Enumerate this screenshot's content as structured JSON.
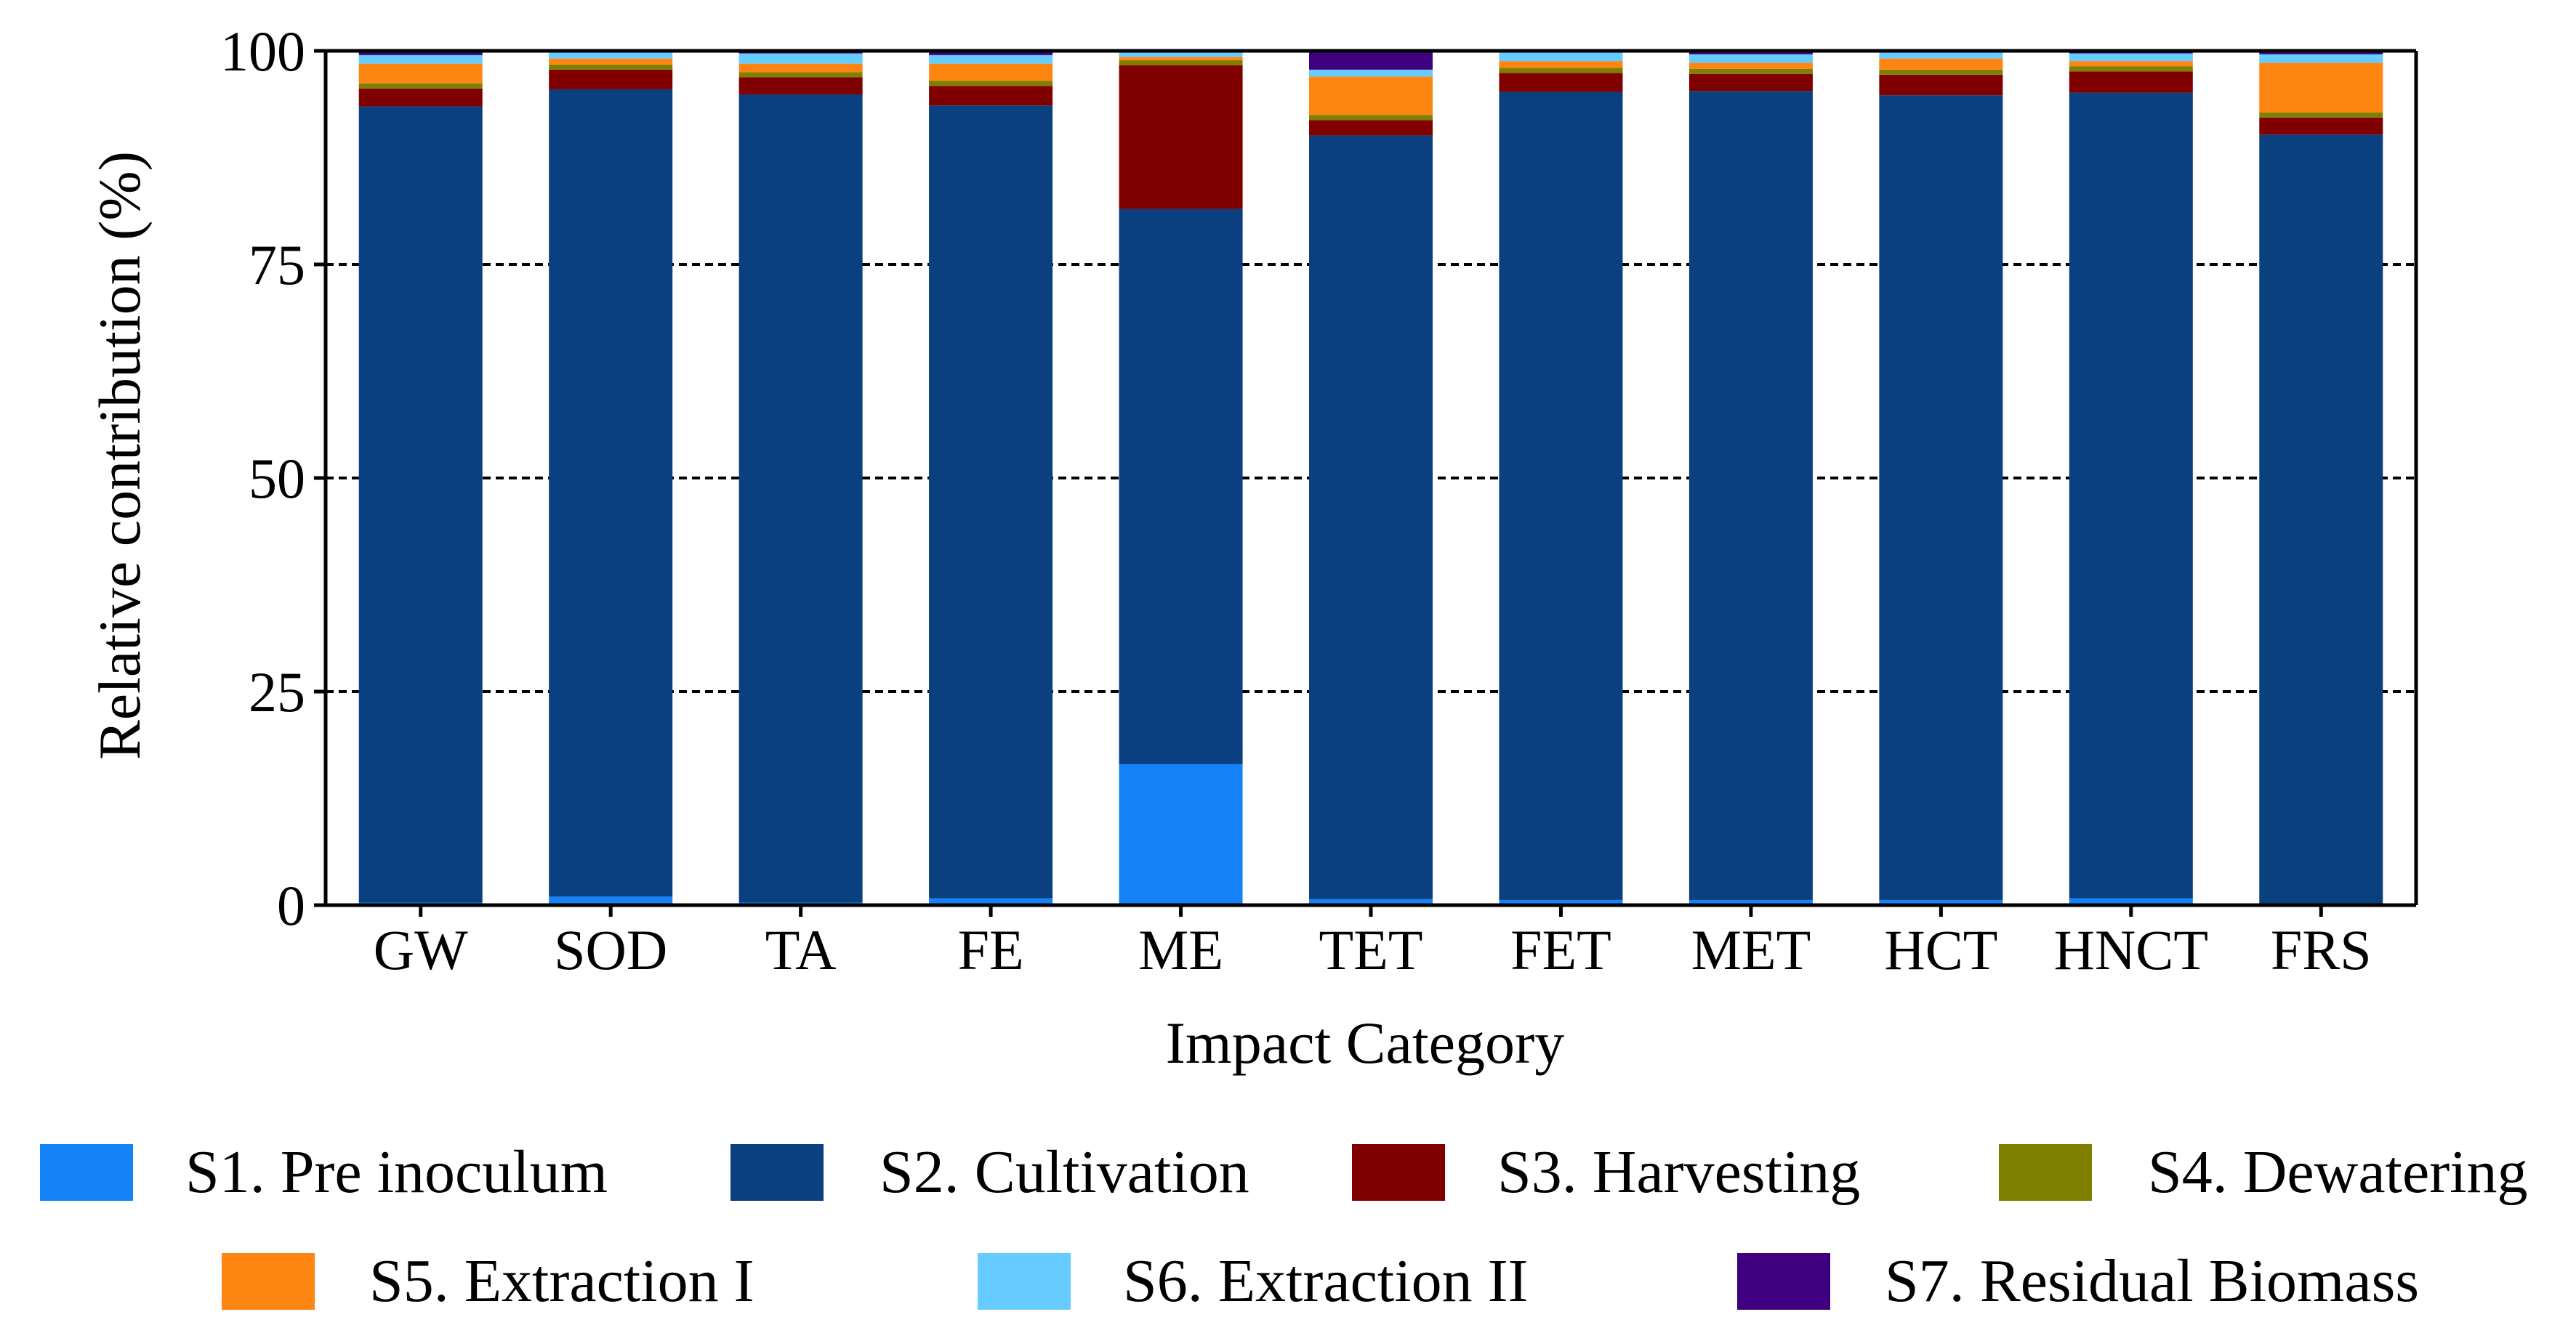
{
  "chart_data": {
    "type": "bar",
    "stacked": true,
    "title": "",
    "xlabel": "Impact Category",
    "ylabel": "Relative contribution (%)",
    "ylim": [
      0,
      100
    ],
    "yticks": [
      0,
      25,
      50,
      75,
      100
    ],
    "gridlines": [
      25,
      50,
      75
    ],
    "categories": [
      "GW",
      "SOD",
      "TA",
      "FE",
      "ME",
      "TET",
      "FET",
      "MET",
      "HCT",
      "HNCT",
      "FRS"
    ],
    "series": [
      {
        "name": "S1. Pre inoculum",
        "color": "#1583F7",
        "values": [
          0.3,
          1.0,
          0.3,
          0.8,
          16.5,
          0.7,
          0.6,
          0.6,
          0.6,
          0.8,
          0.2
        ]
      },
      {
        "name": "S2. Cultivation",
        "color": "#0A3F80",
        "values": [
          93.2,
          94.5,
          94.6,
          92.8,
          65.0,
          89.4,
          94.6,
          94.7,
          94.2,
          94.3,
          90.0
        ]
      },
      {
        "name": "S3. Harvesting",
        "color": "#800000",
        "values": [
          2.1,
          2.3,
          2.0,
          2.3,
          16.8,
          1.8,
          2.2,
          2.0,
          2.4,
          2.5,
          2.0
        ]
      },
      {
        "name": "S4. Dewatering",
        "color": "#7F7F00",
        "values": [
          0.6,
          0.6,
          0.6,
          0.6,
          0.6,
          0.6,
          0.6,
          0.6,
          0.6,
          0.6,
          0.6
        ]
      },
      {
        "name": "S5. Extraction I",
        "color": "#FF8513",
        "values": [
          2.3,
          0.7,
          1.0,
          2.0,
          0.4,
          4.5,
          0.8,
          0.7,
          1.3,
          0.6,
          5.8
        ]
      },
      {
        "name": "S6. Extraction II",
        "color": "#66CCFF",
        "values": [
          1.0,
          0.7,
          1.2,
          1.0,
          0.5,
          0.8,
          1.0,
          1.0,
          0.7,
          0.9,
          1.0
        ]
      },
      {
        "name": "S7. Residual Biomass",
        "color": "#3F0080",
        "values": [
          0.5,
          0.2,
          0.3,
          0.5,
          0.2,
          2.2,
          0.2,
          0.4,
          0.2,
          0.3,
          0.4
        ]
      }
    ]
  }
}
